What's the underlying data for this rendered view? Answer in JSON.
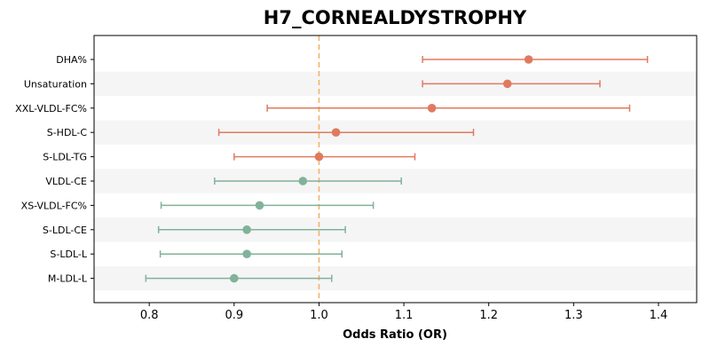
{
  "chart_data": {
    "type": "scatter",
    "title": "H7_CORNEALDYSTROPHY",
    "xlabel": "Odds Ratio (OR)",
    "ylabel": "",
    "xlim": [
      0.735,
      1.445
    ],
    "x_ticks": [
      0.8,
      0.9,
      1.0,
      1.1,
      1.2,
      1.3,
      1.4
    ],
    "x_tick_labels": [
      "0.8",
      "0.9",
      "1.0",
      "1.1",
      "1.2",
      "1.3",
      "1.4"
    ],
    "reference_line": 1.0,
    "grid": false,
    "rows": [
      {
        "label": "DHA%",
        "or": 1.247,
        "ci_low": 1.122,
        "ci_high": 1.387
      },
      {
        "label": "Unsaturation",
        "or": 1.222,
        "ci_low": 1.122,
        "ci_high": 1.331
      },
      {
        "label": "XXL-VLDL-FC%",
        "or": 1.133,
        "ci_low": 0.939,
        "ci_high": 1.366
      },
      {
        "label": "S-HDL-C",
        "or": 1.02,
        "ci_low": 0.882,
        "ci_high": 1.182
      },
      {
        "label": "S-LDL-TG",
        "or": 1.0,
        "ci_low": 0.9,
        "ci_high": 1.113
      },
      {
        "label": "VLDL-CE",
        "or": 0.981,
        "ci_low": 0.877,
        "ci_high": 1.097
      },
      {
        "label": "XS-VLDL-FC%",
        "or": 0.93,
        "ci_low": 0.814,
        "ci_high": 1.064
      },
      {
        "label": "S-LDL-CE",
        "or": 0.915,
        "ci_low": 0.811,
        "ci_high": 1.031
      },
      {
        "label": "S-LDL-L",
        "or": 0.915,
        "ci_low": 0.813,
        "ci_high": 1.027
      },
      {
        "label": "M-LDL-L",
        "or": 0.9,
        "ci_low": 0.796,
        "ci_high": 1.015
      }
    ],
    "colors": {
      "above_reference": "#e07a5f",
      "below_reference": "#81b29a",
      "reference_line": "#f4b26a",
      "band": "#f5f5f5"
    }
  }
}
